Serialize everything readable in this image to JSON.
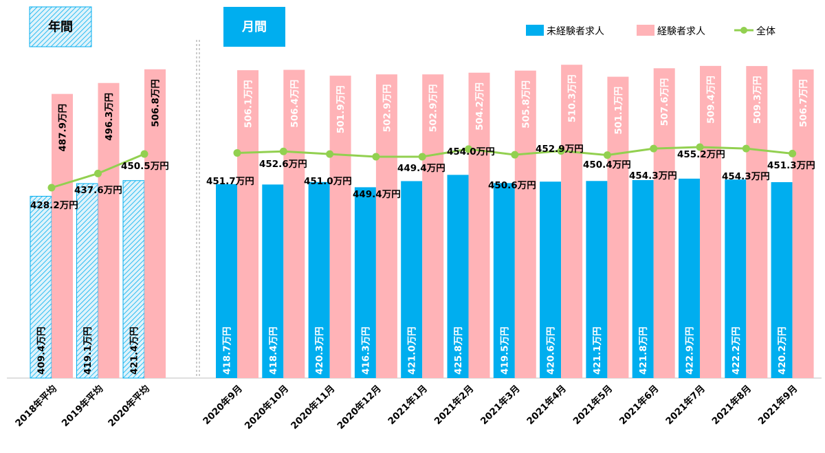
{
  "tags": {
    "annual": "年間",
    "monthly": "月間"
  },
  "legend": {
    "inexperienced": "未経験者求人",
    "experienced": "経験者求人",
    "overall": "全体"
  },
  "colors": {
    "inexperienced": "#00aeef",
    "experienced": "#ffb3b7",
    "overall": "#92d050",
    "text": "#000000"
  },
  "chart_data": {
    "type": "bar",
    "unit_suffix": "万円",
    "ylim": [
      0,
      520
    ],
    "categories": [
      "2018年平均",
      "2019年平均",
      "2020年平均",
      "2020年9月",
      "2020年10月",
      "2020年11月",
      "2020年12月",
      "2021年1月",
      "2021年2月",
      "2021年3月",
      "2021年4月",
      "2021年5月",
      "2021年6月",
      "2021年7月",
      "2021年8月",
      "2021年9月"
    ],
    "series": [
      {
        "name": "未経験者求人",
        "type": "bar",
        "values": [
          409.4,
          419.1,
          421.4,
          418.7,
          418.4,
          420.3,
          416.3,
          421.0,
          425.8,
          419.5,
          420.6,
          421.1,
          421.8,
          422.9,
          422.2,
          420.2
        ]
      },
      {
        "name": "経験者求人",
        "type": "bar",
        "values": [
          487.9,
          496.3,
          506.8,
          506.1,
          506.4,
          501.9,
          502.9,
          502.9,
          504.2,
          505.8,
          510.3,
          501.1,
          507.6,
          509.4,
          509.3,
          506.7
        ]
      },
      {
        "name": "全体",
        "type": "line",
        "annual": [
          428.2,
          437.6,
          450.5
        ],
        "monthly": [
          451.7,
          452.6,
          451.0,
          449.4,
          449.4,
          454.0,
          450.6,
          452.9,
          450.4,
          454.3,
          455.2,
          454.3,
          451.3
        ]
      }
    ],
    "value_labels": {
      "inexperienced": [
        "409.4万円",
        "419.1万円",
        "421.4万円",
        "418.7万円",
        "418.4万円",
        "420.3万円",
        "416.3万円",
        "421.0万円",
        "425.8万円",
        "419.5万円",
        "420.6万円",
        "421.1万円",
        "421.8万円",
        "422.9万円",
        "422.2万円",
        "420.2万円"
      ],
      "experienced": [
        "487.9万円",
        "496.3万円",
        "506.8万円",
        "506.1万円",
        "506.4万円",
        "501.9万円",
        "502.9万円",
        "502.9万円",
        "504.2万円",
        "505.8万円",
        "510.3万円",
        "501.1万円",
        "507.6万円",
        "509.4万円",
        "509.3万円",
        "506.7万円"
      ],
      "overall_annual": [
        "428.2万円",
        "437.6万円",
        "450.5万円"
      ],
      "overall_monthly": [
        "451.7万円",
        "452.6万円",
        "451.0万円",
        "449.4万円",
        "449.4万円",
        "454.0万円",
        "450.6万円",
        "452.9万円",
        "450.4万円",
        "454.3万円",
        "455.2万円",
        "454.3万円",
        "451.3万円"
      ]
    },
    "annual_style": "hatched",
    "legend_position": "top-right",
    "grid": false
  }
}
